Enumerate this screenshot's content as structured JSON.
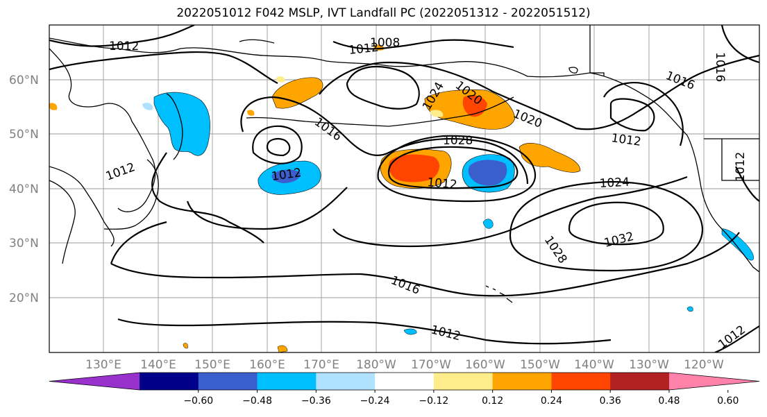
{
  "title": "2022051012 F042 MSLP, IVT Landfall PC (2022051312 - 2022051512)",
  "lat_labels": [
    "60°N",
    "50°N",
    "40°N",
    "30°N",
    "20°N"
  ],
  "lon_labels": [
    "130°E",
    "140°E",
    "150°E",
    "160°E",
    "170°E",
    "180°W",
    "170°W",
    "160°W",
    "150°W",
    "140°W",
    "130°W",
    "120°W"
  ],
  "contour_labels": [
    "1012",
    "1012",
    "1008",
    "1020",
    "1016",
    "1012",
    "1012",
    "1016",
    "1024",
    "1028",
    "1020",
    "1016",
    "1012",
    "1012",
    "1024",
    "1028",
    "1032",
    "1016",
    "1012",
    "1012",
    "1012"
  ],
  "colorbar": {
    "colors": [
      "#9932cc",
      "#00008b",
      "#3a5fcd",
      "#00bfff",
      "#b0e2ff",
      "#ffffff",
      "#ffec8b",
      "#ffa500",
      "#ff4500",
      "#b22222",
      "#ff82ab"
    ],
    "tick_labels": [
      "−0.60",
      "−0.48",
      "−0.36",
      "−0.24",
      "−0.12",
      "0.12",
      "0.24",
      "0.36",
      "0.48",
      "0.60"
    ]
  }
}
